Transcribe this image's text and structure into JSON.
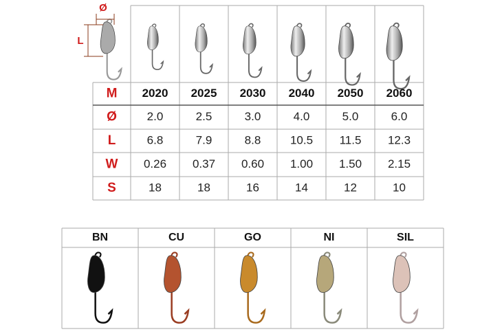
{
  "diagram": {
    "diameter_label": "Ø",
    "length_label": "L"
  },
  "spec_table": {
    "row_labels": [
      "M",
      "Ø",
      "L",
      "W",
      "S"
    ],
    "rows": [
      [
        "2020",
        "2025",
        "2030",
        "2040",
        "2050",
        "2060"
      ],
      [
        "2.0",
        "2.5",
        "3.0",
        "4.0",
        "5.0",
        "6.0"
      ],
      [
        "6.8",
        "7.9",
        "8.8",
        "10.5",
        "11.5",
        "12.3"
      ],
      [
        "0.26",
        "0.37",
        "0.60",
        "1.00",
        "1.50",
        "2.15"
      ],
      [
        "18",
        "18",
        "16",
        "14",
        "12",
        "10"
      ]
    ]
  },
  "colors": {
    "labels": [
      "BN",
      "CU",
      "GO",
      "NI",
      "SIL"
    ]
  }
}
